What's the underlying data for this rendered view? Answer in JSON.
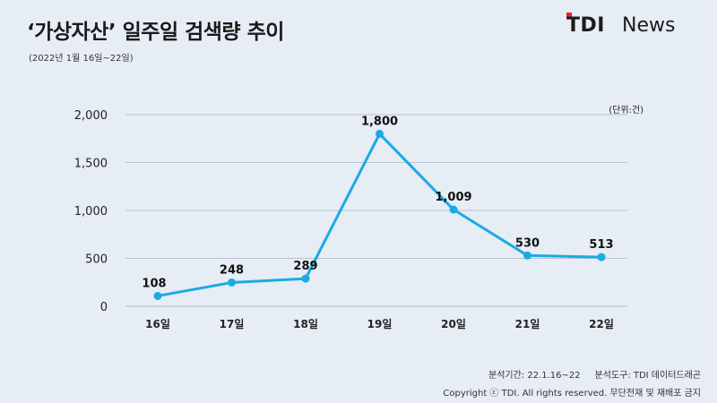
{
  "header": {
    "title": "‘가상자산’ 일주일 검색량 추이",
    "subtitle": "(2022년 1월 16일~22일)",
    "unit": "(단위:건)"
  },
  "logo": {
    "tdi": "TDI",
    "news": "News",
    "accent_color": "#e5242b"
  },
  "footer": {
    "analysis": "분석기간: 22.1.16~22     분석도구: TDI 데이터드래곤",
    "copyright": "Copyright ⓒ TDI. All rights reserved. 무단전재 및 재배포 금지"
  },
  "chart_data": {
    "type": "line",
    "title": "‘가상자산’ 일주일 검색량 추이",
    "subtitle": "(2022년 1월 16일~22일)",
    "categories": [
      "16일",
      "17일",
      "18일",
      "19일",
      "20일",
      "21일",
      "22일"
    ],
    "values": [
      108,
      248,
      289,
      1800,
      1009,
      530,
      513
    ],
    "data_labels": [
      "108",
      "248",
      "289",
      "1,800",
      "1,009",
      "530",
      "513"
    ],
    "y_ticks": [
      0,
      500,
      1000,
      1500,
      2000
    ],
    "y_tick_labels": [
      "0",
      "500",
      "1,000",
      "1,500",
      "2,000"
    ],
    "ylim": [
      0,
      2000
    ],
    "grid": true,
    "line_color": "#1aabe3",
    "grid_color": "#b9c3d0",
    "legend": "none"
  }
}
